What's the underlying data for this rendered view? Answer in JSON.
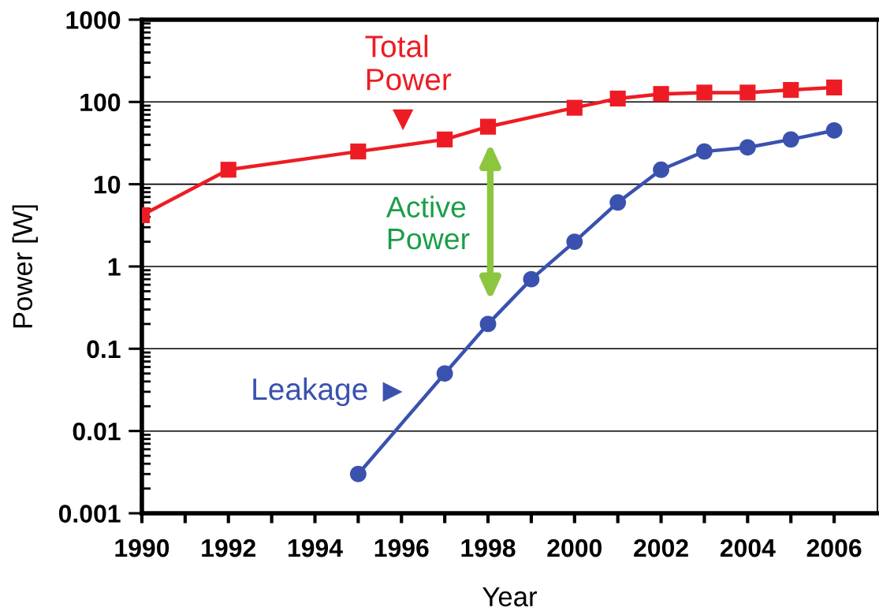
{
  "chart_data": {
    "type": "line",
    "xlabel": "Year",
    "ylabel": "Power [W]",
    "log": "y",
    "grid": "y",
    "xlim": [
      1990,
      2007
    ],
    "xticks": [
      1990,
      {
        "value": 1991,
        "label": null
      },
      1992,
      {
        "value": 1993,
        "label": null
      },
      1994,
      {
        "value": 1995,
        "label": null
      },
      1996,
      {
        "value": 1997,
        "label": null
      },
      1998,
      {
        "value": 1999,
        "label": null
      },
      2000,
      {
        "value": 2001,
        "label": null
      },
      2002,
      {
        "value": 2003,
        "label": null
      },
      2004,
      {
        "value": 2005,
        "label": null
      },
      2006
    ],
    "ylim": [
      0.001,
      1000
    ],
    "yticks": [
      0.001,
      0.01,
      0.1,
      1,
      10,
      100,
      1000
    ],
    "series": [
      {
        "name": "Total Power",
        "color": "#ed1c24",
        "marker": "square",
        "x": [
          1990,
          1992,
          1995,
          1997,
          1998,
          2000,
          2001,
          2002,
          2003,
          2004,
          2005,
          2006
        ],
        "values": [
          4.2,
          15,
          25,
          35,
          50,
          85,
          110,
          125,
          130,
          130,
          140,
          150
        ]
      },
      {
        "name": "Leakage",
        "color": "#3a52ae",
        "marker": "circle",
        "x": [
          1995,
          1997,
          1998,
          1999,
          2000,
          2001,
          2002,
          2003,
          2004,
          2005,
          2006
        ],
        "values": [
          0.003,
          0.05,
          0.2,
          0.7,
          2,
          6,
          15,
          25,
          28,
          35,
          45
        ]
      }
    ],
    "annotations": [
      "Active Power"
    ]
  }
}
